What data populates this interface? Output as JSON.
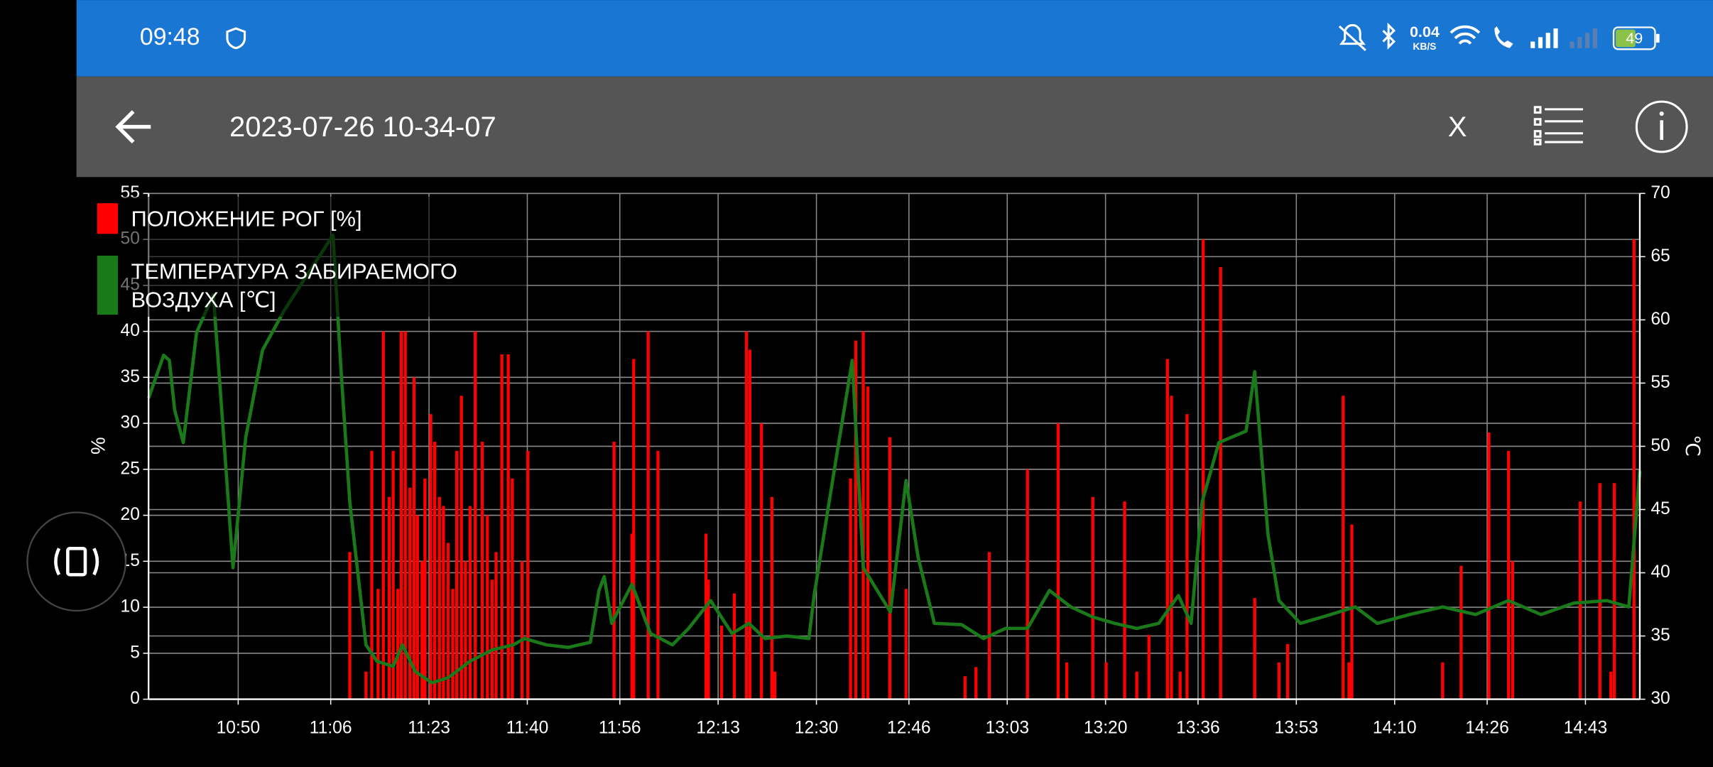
{
  "status_bar": {
    "time": "09:48",
    "speed": "0.04",
    "speed_unit": "KB/S",
    "battery": "49"
  },
  "toolbar": {
    "title": "2023-07-26 10-34-07",
    "close": "X"
  },
  "chart_data": {
    "type": "bar_line",
    "ylabel": "%",
    "y2label": "℃",
    "xlim": [
      634.5,
      892.4
    ],
    "xticks": [
      {
        "value": 650,
        "label": "10:50"
      },
      {
        "value": 666,
        "label": "11:06"
      },
      {
        "value": 683,
        "label": "11:23"
      },
      {
        "value": 700,
        "label": "11:40"
      },
      {
        "value": 716,
        "label": "11:56"
      },
      {
        "value": 733,
        "label": "12:13"
      },
      {
        "value": 750,
        "label": "12:30"
      },
      {
        "value": 766,
        "label": "12:46"
      },
      {
        "value": 783,
        "label": "13:03"
      },
      {
        "value": 800,
        "label": "13:20"
      },
      {
        "value": 816,
        "label": "13:36"
      },
      {
        "value": 833,
        "label": "13:53"
      },
      {
        "value": 850,
        "label": "14:10"
      },
      {
        "value": 866,
        "label": "14:26"
      },
      {
        "value": 883,
        "label": "14:43"
      }
    ],
    "ylim": [
      0,
      55
    ],
    "yticks": [
      0,
      5,
      10,
      15,
      20,
      25,
      30,
      35,
      40,
      45,
      50,
      55
    ],
    "y2lim": [
      30,
      70
    ],
    "y2ticks": [
      30,
      35,
      40,
      45,
      50,
      55,
      60,
      65,
      70
    ],
    "grid": true,
    "legend": "upper left",
    "series": [
      {
        "name": "ПОЛОЖЕНИЕ РОГ [%]",
        "color": "#ff0000",
        "kind": "bar",
        "x": [
          669.3,
          672.1,
          673.1,
          674.2,
          675.1,
          676.1,
          676.8,
          677.6,
          678.2,
          678.9,
          679.7,
          680.4,
          681,
          681.8,
          682.3,
          683.3,
          684,
          684.8,
          685.5,
          686.3,
          687.1,
          687.8,
          688.6,
          689.3,
          690.1,
          691,
          692.2,
          693.1,
          693.9,
          694.6,
          695.6,
          696.7,
          697.4,
          699.1,
          700.1,
          715,
          718.1,
          718.4,
          720.9,
          722.6,
          730.9,
          731.3,
          733.6,
          735.8,
          737.9,
          738.5,
          740.5,
          742.3,
          742.8,
          755.9,
          756.8,
          758.1,
          758.9,
          762.7,
          765.5,
          775.7,
          777.6,
          779.9,
          786.5,
          791.8,
          793.3,
          797.8,
          800.1,
          803.3,
          805.4,
          807.5,
          810.7,
          811.4,
          812.9,
          814.1,
          816.9,
          819.9,
          825.8,
          830,
          831.5,
          841.1,
          842.1,
          842.6,
          858.3,
          861.5,
          866.3,
          869.7,
          870.4,
          882.1,
          885.5,
          887.4,
          888,
          891.4
        ],
        "values": [
          16,
          3,
          27,
          12,
          40,
          22,
          27,
          12,
          40,
          40,
          23,
          35,
          20,
          15,
          24,
          31,
          28,
          22,
          21,
          17,
          12,
          27,
          33,
          15,
          21,
          40,
          28,
          20,
          13,
          16,
          37.5,
          37.5,
          24,
          15,
          27,
          28,
          18,
          37,
          40,
          27,
          18,
          13,
          8,
          11.5,
          40,
          38,
          30,
          22,
          3,
          24,
          39,
          40,
          34,
          28.5,
          12,
          2.5,
          3.5,
          16,
          25,
          30,
          4,
          22,
          4,
          21.5,
          3,
          7,
          37,
          33,
          3,
          31,
          50,
          47,
          11,
          4,
          6,
          33,
          4,
          19,
          4,
          14.5,
          29,
          27,
          15,
          21.5,
          23.5,
          3,
          23.5,
          50
        ]
      },
      {
        "name": "ТЕМПЕРАТУРА ЗАБИРАЕМОГО ВОЗДУХА [℃]",
        "color": "#1a7a1a",
        "kind": "line",
        "axis": "y2",
        "x": [
          634.5,
          637.1,
          638.1,
          639,
          640.5,
          642.8,
          645.7,
          647.5,
          649.1,
          651.3,
          654.2,
          657.9,
          662.7,
          666.4,
          667.8,
          669.3,
          672.1,
          674,
          676.8,
          678.4,
          680.6,
          683.5,
          686.3,
          690.1,
          693.9,
          697.6,
          699.5,
          703.3,
          707.1,
          710.9,
          712.4,
          713.3,
          714.6,
          718.1,
          721.3,
          725.1,
          727.9,
          731.7,
          735.4,
          738.3,
          741.1,
          744.9,
          748.7,
          749.6,
          753.4,
          756.2,
          758.1,
          762.8,
          765.5,
          767.6,
          770.4,
          775.1,
          778.9,
          782.7,
          786.5,
          790.3,
          794,
          797.8,
          801.6,
          805.4,
          809.2,
          812.6,
          814.8,
          816.7,
          819.6,
          824.3,
          825.8,
          828.1,
          830,
          833.7,
          837.5,
          843.2,
          847,
          852.6,
          858.3,
          864,
          869.7,
          875.3,
          881,
          886.7,
          890.5,
          892.4
        ],
        "values": [
          53.8,
          57.2,
          56.8,
          52.9,
          50.3,
          59,
          62,
          50.7,
          40.4,
          50.7,
          57.6,
          60.7,
          64.1,
          66.7,
          55.9,
          45.6,
          34.3,
          33,
          32.6,
          34.3,
          32.2,
          31.3,
          31.7,
          33,
          33.9,
          34.3,
          34.8,
          34.3,
          34.1,
          34.5,
          38.6,
          39.7,
          36,
          39.1,
          35.2,
          34.3,
          35.6,
          37.8,
          35.2,
          36,
          34.8,
          35,
          34.8,
          38.2,
          49,
          56.8,
          40.4,
          36.9,
          47.3,
          41.2,
          36,
          35.9,
          34.8,
          35.6,
          35.6,
          38.6,
          37.3,
          36.5,
          36,
          35.6,
          36,
          38.2,
          36,
          45.6,
          50.3,
          51.2,
          55.9,
          43,
          37.8,
          36,
          36.5,
          37.3,
          36,
          36.7,
          37.3,
          36.7,
          37.8,
          36.7,
          37.6,
          37.8,
          37.3,
          48.1
        ]
      }
    ]
  }
}
